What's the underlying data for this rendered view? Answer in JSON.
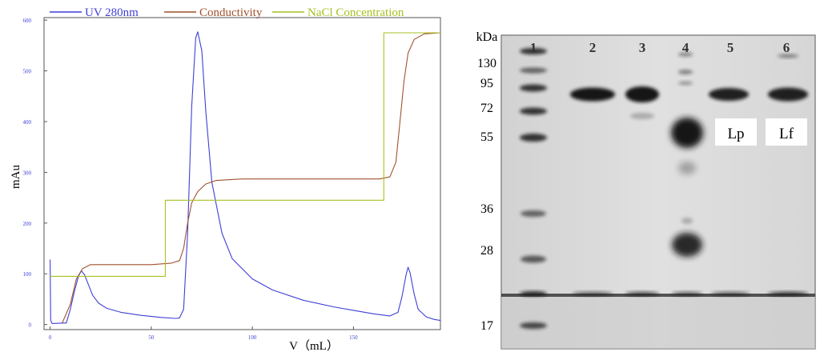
{
  "chart_data": {
    "type": "line",
    "xlabel": "V（mL）",
    "ylabel": "mAu",
    "xlim": [
      -3,
      193
    ],
    "ylim": [
      -10,
      605
    ],
    "x_ticks": [
      0,
      50,
      100,
      150
    ],
    "y_ticks": [
      0,
      100,
      200,
      300,
      400,
      500,
      600
    ],
    "legend_position": "top",
    "series": [
      {
        "name": "UV 280nm",
        "color": "#3f3fd8",
        "points": [
          [
            0,
            128
          ],
          [
            0.3,
            8
          ],
          [
            1,
            2
          ],
          [
            6,
            3
          ],
          [
            8,
            3
          ],
          [
            10,
            30
          ],
          [
            12,
            65
          ],
          [
            14,
            95
          ],
          [
            15.5,
            106
          ],
          [
            17,
            98
          ],
          [
            19,
            78
          ],
          [
            21,
            58
          ],
          [
            24,
            42
          ],
          [
            28,
            32
          ],
          [
            35,
            24
          ],
          [
            45,
            18
          ],
          [
            55,
            14
          ],
          [
            62,
            12
          ],
          [
            64,
            13
          ],
          [
            66,
            30
          ],
          [
            68,
            180
          ],
          [
            70,
            430
          ],
          [
            72,
            565
          ],
          [
            73,
            577
          ],
          [
            75,
            540
          ],
          [
            77,
            420
          ],
          [
            80,
            280
          ],
          [
            85,
            180
          ],
          [
            90,
            130
          ],
          [
            100,
            90
          ],
          [
            110,
            68
          ],
          [
            125,
            48
          ],
          [
            140,
            35
          ],
          [
            150,
            28
          ],
          [
            160,
            21
          ],
          [
            168,
            17
          ],
          [
            172,
            24
          ],
          [
            174,
            55
          ],
          [
            176,
            98
          ],
          [
            177,
            113
          ],
          [
            178,
            102
          ],
          [
            180,
            60
          ],
          [
            182,
            30
          ],
          [
            186,
            15
          ],
          [
            190,
            10
          ],
          [
            193,
            8
          ]
        ]
      },
      {
        "name": "Conductivity",
        "color": "#a0522d",
        "points": [
          [
            6,
            3
          ],
          [
            10,
            40
          ],
          [
            13,
            90
          ],
          [
            16,
            110
          ],
          [
            20,
            118
          ],
          [
            30,
            118
          ],
          [
            50,
            118
          ],
          [
            60,
            121
          ],
          [
            64,
            126
          ],
          [
            66,
            150
          ],
          [
            68,
            200
          ],
          [
            70,
            240
          ],
          [
            73,
            262
          ],
          [
            77,
            277
          ],
          [
            82,
            284
          ],
          [
            95,
            287
          ],
          [
            120,
            287
          ],
          [
            150,
            287
          ],
          [
            163,
            287
          ],
          [
            168,
            291
          ],
          [
            171,
            320
          ],
          [
            173,
            400
          ],
          [
            175,
            480
          ],
          [
            177,
            535
          ],
          [
            180,
            562
          ],
          [
            185,
            573
          ],
          [
            193,
            575
          ]
        ]
      },
      {
        "name": "NaCl Concentration",
        "color": "#a8c020",
        "points": [
          [
            0,
            95
          ],
          [
            57,
            95
          ],
          [
            57,
            245
          ],
          [
            165,
            245
          ],
          [
            165,
            575
          ],
          [
            193,
            575
          ]
        ]
      }
    ]
  },
  "gel": {
    "unit_label": "kDa",
    "markers": [
      "130",
      "95",
      "72",
      "55",
      "36",
      "28",
      "17"
    ],
    "lanes": [
      "1",
      "2",
      "3",
      "4",
      "5",
      "6"
    ],
    "lane_labels": [
      "Lp",
      "Lf"
    ]
  }
}
